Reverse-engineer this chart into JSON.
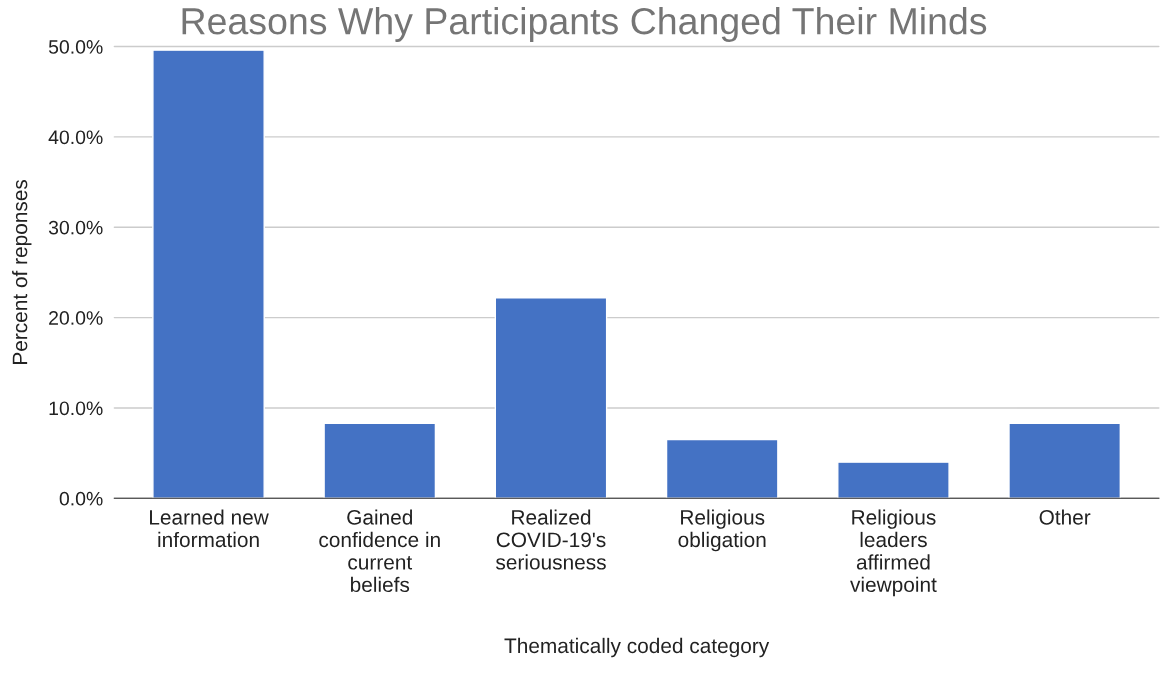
{
  "chart_data": {
    "type": "bar",
    "title": "Reasons Why Participants Changed Their Minds",
    "xlabel": "Thematically coded category",
    "ylabel": "Percent of reponses",
    "categories": [
      "Learned new\ninformation",
      "Gained\nconfidence in\ncurrent\nbeliefs",
      "Realized\nCOVID-19's\nseriousness",
      "Religious\nobligation",
      "Religious\nleaders\naffirmed\nviewpoint",
      "Other"
    ],
    "values": [
      49.6,
      8.3,
      22.2,
      6.5,
      4.0,
      8.3
    ],
    "color": "#4472c4",
    "ylim": [
      0,
      50
    ],
    "yticks": [
      {
        "value": 0,
        "label": "0.0%"
      },
      {
        "value": 10,
        "label": "10.0%"
      },
      {
        "value": 20,
        "label": "20.0%"
      },
      {
        "value": 30,
        "label": "30.0%"
      },
      {
        "value": 40,
        "label": "40.0%"
      },
      {
        "value": 50,
        "label": "50.0%"
      }
    ],
    "grid": "y",
    "legend": false
  }
}
